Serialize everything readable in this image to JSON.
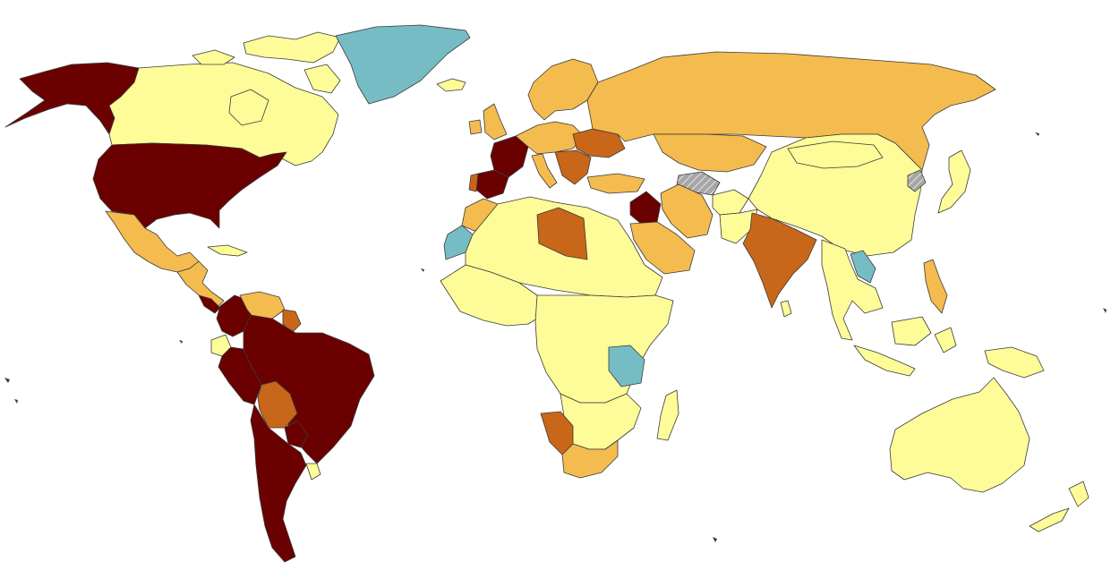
{
  "map": {
    "palette": {
      "darkred": "#6b0000",
      "orange": "#c8661a",
      "lightorange": "#f4bb4e",
      "yellow": "#fdfc98",
      "teal": "#76bcc4",
      "grey": "#a6a6a6",
      "ocean": "#ffffff",
      "border": "#3a3a3a"
    },
    "regions": [
      {
        "id": "alaska",
        "class": "darkred"
      },
      {
        "id": "canada",
        "class": "yellow"
      },
      {
        "id": "canadian-arctic",
        "class": "yellow"
      },
      {
        "id": "greenland",
        "class": "teal"
      },
      {
        "id": "iceland",
        "class": "yellow"
      },
      {
        "id": "usa",
        "class": "darkred"
      },
      {
        "id": "mexico",
        "class": "lightorange"
      },
      {
        "id": "central-america",
        "class": "lightorange"
      },
      {
        "id": "costa-rica",
        "class": "darkred"
      },
      {
        "id": "cuba",
        "class": "yellow"
      },
      {
        "id": "venezuela",
        "class": "lightorange"
      },
      {
        "id": "guyana",
        "class": "orange"
      },
      {
        "id": "colombia",
        "class": "darkred"
      },
      {
        "id": "ecuador",
        "class": "yellow"
      },
      {
        "id": "brazil",
        "class": "darkred"
      },
      {
        "id": "peru",
        "class": "darkred"
      },
      {
        "id": "bolivia",
        "class": "orange"
      },
      {
        "id": "paraguay",
        "class": "darkred"
      },
      {
        "id": "argentina-chile",
        "class": "darkred"
      },
      {
        "id": "uruguay",
        "class": "yellow"
      },
      {
        "id": "scandinavia",
        "class": "lightorange"
      },
      {
        "id": "uk",
        "class": "lightorange"
      },
      {
        "id": "ireland",
        "class": "lightorange"
      },
      {
        "id": "france",
        "class": "darkred"
      },
      {
        "id": "spain",
        "class": "darkred"
      },
      {
        "id": "portugal",
        "class": "orange"
      },
      {
        "id": "central-europe",
        "class": "lightorange"
      },
      {
        "id": "ukraine",
        "class": "orange"
      },
      {
        "id": "italy",
        "class": "lightorange"
      },
      {
        "id": "balkans",
        "class": "orange"
      },
      {
        "id": "russia",
        "class": "lightorange"
      },
      {
        "id": "kazakhstan",
        "class": "lightorange"
      },
      {
        "id": "turkmenistan",
        "class": "grey"
      },
      {
        "id": "turkey",
        "class": "lightorange"
      },
      {
        "id": "iraq",
        "class": "darkred"
      },
      {
        "id": "iran",
        "class": "lightorange"
      },
      {
        "id": "saudi-arabia",
        "class": "lightorange"
      },
      {
        "id": "afghanistan",
        "class": "yellow"
      },
      {
        "id": "pakistan",
        "class": "yellow"
      },
      {
        "id": "india",
        "class": "orange"
      },
      {
        "id": "sri-lanka",
        "class": "yellow"
      },
      {
        "id": "china",
        "class": "yellow"
      },
      {
        "id": "mongolia",
        "class": "yellow"
      },
      {
        "id": "korea-north",
        "class": "grey"
      },
      {
        "id": "japan",
        "class": "yellow"
      },
      {
        "id": "laos",
        "class": "teal"
      },
      {
        "id": "se-asia",
        "class": "yellow"
      },
      {
        "id": "philippines",
        "class": "lightorange"
      },
      {
        "id": "indonesia",
        "class": "yellow"
      },
      {
        "id": "papua",
        "class": "yellow"
      },
      {
        "id": "australia",
        "class": "yellow"
      },
      {
        "id": "new-zealand",
        "class": "yellow"
      },
      {
        "id": "morocco",
        "class": "lightorange"
      },
      {
        "id": "western-sahara",
        "class": "teal"
      },
      {
        "id": "north-africa",
        "class": "yellow"
      },
      {
        "id": "libya",
        "class": "orange"
      },
      {
        "id": "west-africa",
        "class": "yellow"
      },
      {
        "id": "central-africa",
        "class": "yellow"
      },
      {
        "id": "tanzania",
        "class": "teal"
      },
      {
        "id": "southern-africa",
        "class": "yellow"
      },
      {
        "id": "namibia",
        "class": "orange"
      },
      {
        "id": "south-africa",
        "class": "lightorange"
      },
      {
        "id": "madagascar",
        "class": "yellow"
      }
    ]
  }
}
